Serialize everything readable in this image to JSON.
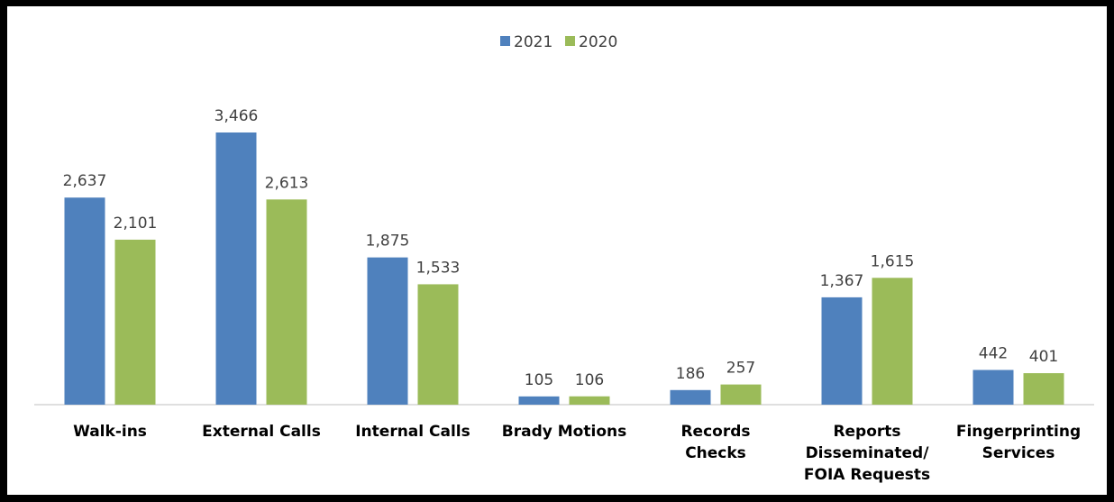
{
  "chart_data": {
    "type": "bar",
    "title": "",
    "xlabel": "",
    "ylabel": "",
    "categories": [
      [
        "Walk-ins"
      ],
      [
        "External Calls"
      ],
      [
        "Internal Calls"
      ],
      [
        "Brady Motions"
      ],
      [
        "Records",
        "Checks"
      ],
      [
        "Reports",
        "Disseminated/",
        "FOIA Requests"
      ],
      [
        "Fingerprinting",
        "Services"
      ]
    ],
    "series": [
      {
        "name": "2021",
        "color": "#4F81BD",
        "values": [
          2637,
          3466,
          1875,
          105,
          186,
          1367,
          442
        ],
        "labels": [
          "2,637",
          "3,466",
          "1,875",
          "105",
          "186",
          "1,367",
          "442"
        ]
      },
      {
        "name": "2020",
        "color": "#9BBB59",
        "values": [
          2101,
          2613,
          1533,
          106,
          257,
          1615,
          401
        ],
        "labels": [
          "2,101",
          "2,613",
          "1,533",
          "106",
          "257",
          "1,615",
          "401"
        ]
      }
    ],
    "ylim": [
      0,
      3800
    ],
    "grid": false,
    "legend_position": "top-center",
    "axis_color": "#BFBFBF"
  }
}
